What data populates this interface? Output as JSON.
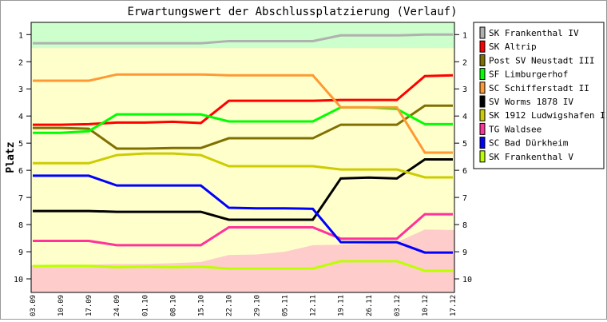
{
  "chart_data": {
    "type": "line",
    "title": "Erwartungswert der Abschlussplatzierung (Verlauf)",
    "ylabel": "Platz",
    "xlabel": "",
    "ylim": [
      0.55,
      10.5
    ],
    "y_inverted": true,
    "yticks": [
      1,
      2,
      3,
      4,
      5,
      6,
      7,
      8,
      9,
      10
    ],
    "x": [
      "03.09",
      "10.09",
      "17.09",
      "24.09",
      "01.10",
      "08.10",
      "15.10",
      "22.10",
      "29.10",
      "05.11",
      "12.11",
      "19.11",
      "26.11",
      "03.12",
      "10.12",
      "17.12"
    ],
    "legend_position": "right",
    "zones": {
      "top_zone": {
        "upto": 1.5,
        "color": "#ccffcc"
      },
      "middle_zone": {
        "color": "#ffffcc"
      },
      "bottom_zone": {
        "color": "#ffcccc",
        "boundary": [
          9.5,
          9.48,
          9.48,
          9.45,
          9.45,
          9.42,
          9.38,
          9.12,
          9.1,
          9.0,
          8.76,
          8.74,
          8.7,
          8.65,
          8.18,
          8.2
        ]
      }
    },
    "series": [
      {
        "name": "SK Frankenthal IV",
        "color": "#b0b0b0",
        "values": [
          1.32,
          1.32,
          1.32,
          1.32,
          1.32,
          1.32,
          1.32,
          1.24,
          1.24,
          1.24,
          1.24,
          1.03,
          1.03,
          1.03,
          1.0,
          1.0
        ]
      },
      {
        "name": "SK Altrip",
        "color": "#ff0000",
        "values": [
          4.32,
          4.32,
          4.3,
          4.24,
          4.24,
          4.21,
          4.26,
          3.44,
          3.44,
          3.44,
          3.44,
          3.41,
          3.41,
          3.41,
          2.53,
          2.5
        ]
      },
      {
        "name": "Post SV Neustadt III",
        "color": "#807000",
        "values": [
          4.44,
          4.44,
          4.47,
          5.2,
          5.2,
          5.18,
          5.18,
          4.82,
          4.82,
          4.82,
          4.82,
          4.32,
          4.32,
          4.32,
          3.62,
          3.62
        ]
      },
      {
        "name": "SF Limburgerhof",
        "color": "#00ff00",
        "values": [
          4.62,
          4.62,
          4.56,
          3.94,
          3.94,
          3.94,
          3.94,
          4.2,
          4.2,
          4.2,
          4.2,
          3.68,
          3.68,
          3.74,
          4.3,
          4.3
        ]
      },
      {
        "name": "SC Schifferstadt II",
        "color": "#ff9933",
        "values": [
          2.7,
          2.7,
          2.7,
          2.47,
          2.47,
          2.47,
          2.47,
          2.5,
          2.5,
          2.5,
          2.5,
          3.68,
          3.68,
          3.68,
          5.35,
          5.35
        ]
      },
      {
        "name": "SV Worms 1878 IV",
        "color": "#000000",
        "values": [
          7.5,
          7.5,
          7.5,
          7.53,
          7.53,
          7.53,
          7.53,
          7.82,
          7.82,
          7.82,
          7.82,
          6.3,
          6.27,
          6.3,
          5.6,
          5.6
        ]
      },
      {
        "name": "SK 1912 Ludwigshafen II",
        "color": "#cccc00",
        "values": [
          5.74,
          5.74,
          5.74,
          5.44,
          5.38,
          5.38,
          5.44,
          5.85,
          5.85,
          5.85,
          5.85,
          5.97,
          5.97,
          5.97,
          6.26,
          6.26
        ]
      },
      {
        "name": "TG Waldsee",
        "color": "#ff3399",
        "values": [
          8.6,
          8.6,
          8.6,
          8.76,
          8.76,
          8.76,
          8.76,
          8.1,
          8.1,
          8.1,
          8.1,
          8.52,
          8.52,
          8.52,
          7.62,
          7.62
        ]
      },
      {
        "name": "SC Bad Dürkheim",
        "color": "#0000ff",
        "values": [
          6.2,
          6.2,
          6.2,
          6.56,
          6.56,
          6.56,
          6.56,
          7.38,
          7.4,
          7.4,
          7.42,
          8.65,
          8.65,
          8.65,
          9.03,
          9.03
        ]
      },
      {
        "name": "SK Frankenthal V",
        "color": "#bbff00",
        "values": [
          9.53,
          9.52,
          9.52,
          9.57,
          9.55,
          9.57,
          9.55,
          9.62,
          9.62,
          9.62,
          9.62,
          9.35,
          9.35,
          9.35,
          9.7,
          9.7
        ]
      }
    ]
  }
}
